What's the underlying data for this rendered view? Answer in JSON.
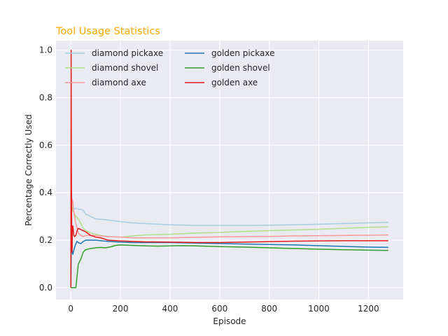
{
  "chart_data": {
    "type": "line",
    "title": "Tool Usage Statistics",
    "xlabel": "Episode",
    "ylabel": "Percentage Correctly Used",
    "xlim": [
      -60,
      1340
    ],
    "ylim": [
      -0.05,
      1.04
    ],
    "xticks": [
      0,
      200,
      400,
      600,
      800,
      1000,
      1200
    ],
    "yticks": [
      0.0,
      0.2,
      0.4,
      0.6,
      0.8,
      1.0
    ],
    "grid": true,
    "legend_position": "top-left",
    "colors": {
      "background": "#eaeaf2",
      "grid": "#ffffff",
      "title": "#f5a800"
    },
    "series": [
      {
        "name": "diamond pickaxe",
        "color": "#a6cee3",
        "x": [
          0,
          2,
          4,
          6,
          8,
          10,
          15,
          20,
          30,
          40,
          50,
          60,
          80,
          100,
          120,
          150,
          200,
          250,
          300,
          400,
          500,
          600,
          700,
          800,
          900,
          1000,
          1100,
          1200,
          1280
        ],
        "y": [
          0.5,
          0.42,
          0.38,
          0.36,
          0.35,
          0.34,
          0.33,
          0.335,
          0.33,
          0.33,
          0.325,
          0.31,
          0.3,
          0.29,
          0.288,
          0.285,
          0.278,
          0.273,
          0.27,
          0.265,
          0.262,
          0.262,
          0.262,
          0.263,
          0.265,
          0.267,
          0.27,
          0.273,
          0.275
        ]
      },
      {
        "name": "diamond shovel",
        "color": "#b2df8a",
        "x": [
          0,
          2,
          4,
          6,
          8,
          10,
          15,
          20,
          30,
          40,
          50,
          60,
          80,
          100,
          120,
          150,
          200,
          250,
          300,
          400,
          500,
          600,
          700,
          800,
          900,
          1000,
          1100,
          1200,
          1280
        ],
        "y": [
          0.4,
          0.33,
          0.32,
          0.34,
          0.33,
          0.32,
          0.31,
          0.3,
          0.29,
          0.27,
          0.25,
          0.24,
          0.23,
          0.225,
          0.22,
          0.215,
          0.213,
          0.218,
          0.222,
          0.225,
          0.23,
          0.233,
          0.237,
          0.24,
          0.243,
          0.246,
          0.25,
          0.254,
          0.256
        ]
      },
      {
        "name": "diamond axe",
        "color": "#fb9a99",
        "x": [
          0,
          2,
          4,
          6,
          8,
          10,
          15,
          20,
          30,
          40,
          50,
          60,
          80,
          100,
          120,
          150,
          200,
          250,
          300,
          400,
          500,
          600,
          700,
          800,
          900,
          1000,
          1100,
          1200,
          1280
        ],
        "y": [
          0.5,
          0.38,
          0.35,
          0.37,
          0.36,
          0.33,
          0.3,
          0.27,
          0.23,
          0.22,
          0.215,
          0.22,
          0.22,
          0.22,
          0.218,
          0.215,
          0.213,
          0.21,
          0.21,
          0.21,
          0.212,
          0.214,
          0.215,
          0.216,
          0.218,
          0.219,
          0.22,
          0.221,
          0.222
        ]
      },
      {
        "name": "golden pickaxe",
        "color": "#1f78b4",
        "x": [
          0,
          2,
          4,
          6,
          8,
          10,
          15,
          20,
          25,
          30,
          40,
          50,
          60,
          80,
          100,
          120,
          150,
          200,
          250,
          300,
          400,
          500,
          600,
          700,
          800,
          900,
          1000,
          1100,
          1200,
          1280
        ],
        "y": [
          0.0,
          0.2,
          0.16,
          0.15,
          0.14,
          0.15,
          0.17,
          0.185,
          0.195,
          0.19,
          0.185,
          0.195,
          0.2,
          0.2,
          0.2,
          0.198,
          0.195,
          0.192,
          0.19,
          0.19,
          0.19,
          0.188,
          0.186,
          0.184,
          0.182,
          0.18,
          0.177,
          0.174,
          0.171,
          0.17
        ]
      },
      {
        "name": "golden shovel",
        "color": "#33a02c",
        "x": [
          0,
          5,
          10,
          15,
          20,
          25,
          30,
          40,
          50,
          60,
          80,
          100,
          120,
          140,
          160,
          180,
          200,
          250,
          300,
          350,
          400,
          450,
          500,
          600,
          700,
          800,
          900,
          1000,
          1100,
          1200,
          1280
        ],
        "y": [
          0.0,
          0.0,
          0.0,
          0.0,
          0.0,
          0.05,
          0.1,
          0.12,
          0.15,
          0.16,
          0.165,
          0.168,
          0.17,
          0.168,
          0.172,
          0.178,
          0.18,
          0.178,
          0.176,
          0.175,
          0.176,
          0.177,
          0.176,
          0.173,
          0.171,
          0.168,
          0.165,
          0.162,
          0.16,
          0.158,
          0.157
        ]
      },
      {
        "name": "golden axe",
        "color": "#e31a1c",
        "x": [
          0,
          1,
          2,
          3,
          4,
          5,
          6,
          8,
          10,
          12,
          15,
          20,
          25,
          30,
          40,
          50,
          60,
          80,
          100,
          120,
          150,
          200,
          250,
          300,
          400,
          500,
          600,
          700,
          800,
          900,
          1000,
          1100,
          1200,
          1280
        ],
        "y": [
          0.0,
          1.0,
          0.5,
          0.3,
          0.2,
          0.15,
          0.25,
          0.26,
          0.24,
          0.22,
          0.215,
          0.22,
          0.24,
          0.25,
          0.245,
          0.24,
          0.235,
          0.22,
          0.213,
          0.21,
          0.2,
          0.197,
          0.195,
          0.193,
          0.192,
          0.19,
          0.19,
          0.192,
          0.194,
          0.196,
          0.197,
          0.198,
          0.198,
          0.198
        ]
      }
    ]
  }
}
